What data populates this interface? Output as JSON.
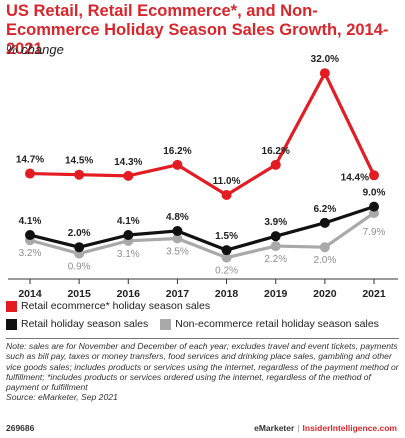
{
  "header": {
    "title": "US Retail, Retail Ecommerce*, and Non-Ecommerce Holiday Season Sales Growth, 2014-2021",
    "subtitle": "% change"
  },
  "legend": {
    "ecommerce": "Retail ecommerce* holiday season sales",
    "retail": "Retail holiday season sales",
    "non_ecommerce": "Non-ecommerce retail holiday season sales"
  },
  "colors": {
    "ecommerce": "#e31c23",
    "retail": "#111111",
    "non_ecommerce": "#a9a9a9",
    "title": "#d9262c"
  },
  "note": "Note: sales are for November and December of each year; excludes travel and event tickets, payments such as bill pay, taxes or money transfers, food services and drinking place sales, gambling and other vice goods sales; includes products or services using the internet, regardless of the payment method or fulfillment; *includes products or services ordered using the internet, regardless of the method of payment or fulfillment",
  "source": "Source: eMarketer, Sep 2021",
  "footer": {
    "chart_id": "269686",
    "brand": "eMarketer",
    "separator": "|",
    "site": "InsiderIntelligence.com"
  },
  "chart_data": {
    "type": "line",
    "categories": [
      "2014",
      "2015",
      "2016",
      "2017",
      "2018",
      "2019",
      "2020",
      "2021"
    ],
    "series": [
      {
        "name": "Retail ecommerce* holiday season sales",
        "values": [
          14.7,
          14.5,
          14.3,
          16.2,
          11.0,
          16.2,
          32.0,
          14.4
        ],
        "labels": [
          "14.7%",
          "14.5%",
          "14.3%",
          "16.2%",
          "11.0%",
          "16.2%",
          "32.0%",
          "14.4%"
        ]
      },
      {
        "name": "Retail holiday season sales",
        "values": [
          4.1,
          2.0,
          4.1,
          4.8,
          1.5,
          3.9,
          6.2,
          9.0
        ],
        "labels": [
          "4.1%",
          "2.0%",
          "4.1%",
          "4.8%",
          "1.5%",
          "3.9%",
          "6.2%",
          "9.0%"
        ]
      },
      {
        "name": "Non-ecommerce retail holiday season sales",
        "values": [
          3.2,
          0.9,
          3.1,
          3.5,
          0.2,
          2.2,
          2.0,
          7.9
        ],
        "labels": [
          "3.2%",
          "0.9%",
          "3.1%",
          "3.5%",
          "0.2%",
          "2.2%",
          "2.0%",
          "7.9%"
        ]
      }
    ]
  }
}
